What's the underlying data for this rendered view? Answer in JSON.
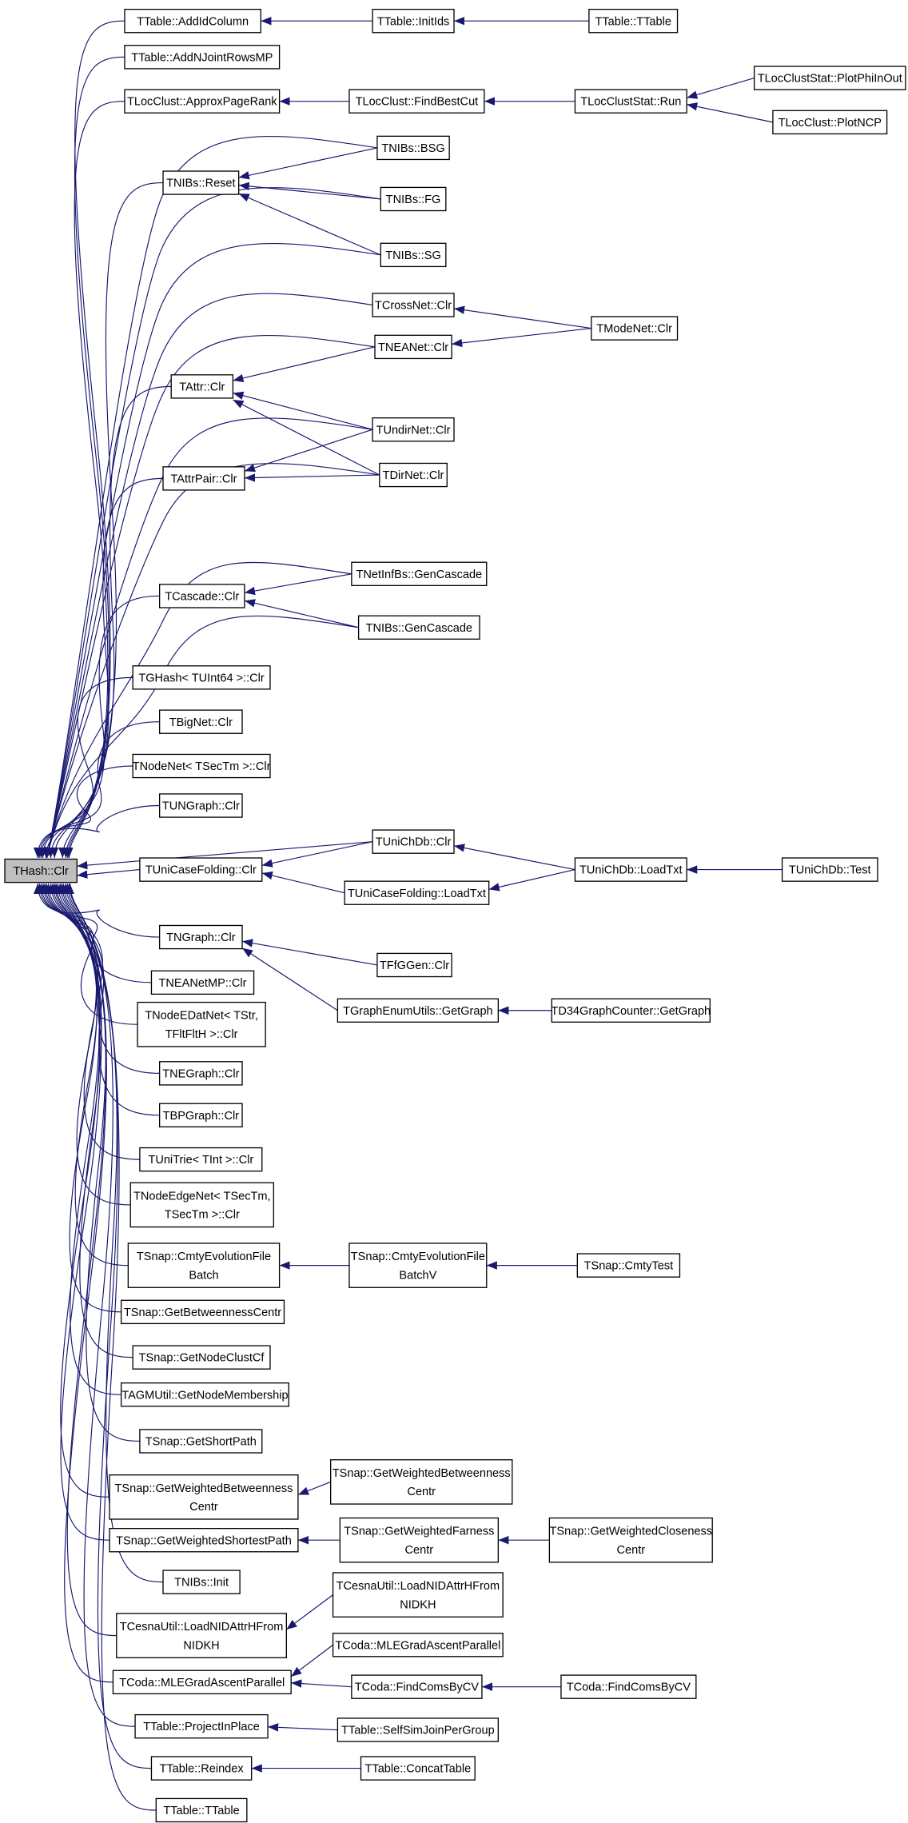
{
  "diagram": {
    "type": "doxygen-caller-graph",
    "edge_color": "#191970",
    "root_fill": "#bfbfbf",
    "nodes": [
      {
        "id": "root",
        "label": "THash::Clr"
      },
      {
        "id": "addIdColumn",
        "label": "TTable::AddIdColumn"
      },
      {
        "id": "addNJoint",
        "label": "TTable::AddNJointRowsMP"
      },
      {
        "id": "approxPR",
        "label": "TLocClust::ApproxPageRank"
      },
      {
        "id": "nibsReset",
        "label": "TNIBs::Reset"
      },
      {
        "id": "attrClr",
        "label": "TAttr::Clr"
      },
      {
        "id": "attrPairClr",
        "label": "TAttrPair::Clr"
      },
      {
        "id": "cascadeClr",
        "label": "TCascade::Clr"
      },
      {
        "id": "ghashClr",
        "label": "TGHash< TUInt64 >::Clr"
      },
      {
        "id": "bigNetClr",
        "label": "TBigNet::Clr"
      },
      {
        "id": "nodeNetClr",
        "label": "TNodeNet< TSecTm >::Clr"
      },
      {
        "id": "ungraphClr",
        "label": "TUNGraph::Clr"
      },
      {
        "id": "uniCaseClr",
        "label": "TUniCaseFolding::Clr"
      },
      {
        "id": "ngraphClr",
        "label": "TNGraph::Clr"
      },
      {
        "id": "neanetmpClr",
        "label": "TNEANetMP::Clr"
      },
      {
        "id": "nodeEDatClr",
        "label": "TNodeEDatNet< TStr,\nTFltFltH >::Clr"
      },
      {
        "id": "negraphClr",
        "label": "TNEGraph::Clr"
      },
      {
        "id": "bpgraphClr",
        "label": "TBPGraph::Clr"
      },
      {
        "id": "uniTrieClr",
        "label": "TUniTrie< TInt >::Clr"
      },
      {
        "id": "nodeEdgeClr",
        "label": "TNodeEdgeNet< TSecTm,\nTSecTm >::Clr"
      },
      {
        "id": "cmtyBatch",
        "label": "TSnap::CmtyEvolutionFile\nBatch"
      },
      {
        "id": "getBetw",
        "label": "TSnap::GetBetweennessCentr"
      },
      {
        "id": "getNodeClust",
        "label": "TSnap::GetNodeClustCf"
      },
      {
        "id": "agmMember",
        "label": "TAGMUtil::GetNodeMembership"
      },
      {
        "id": "getShortPath",
        "label": "TSnap::GetShortPath"
      },
      {
        "id": "getWBetw1",
        "label": "TSnap::GetWeightedBetweenness\nCentr"
      },
      {
        "id": "getWShortest",
        "label": "TSnap::GetWeightedShortestPath"
      },
      {
        "id": "nibsInit",
        "label": "TNIBs::Init"
      },
      {
        "id": "cesna1",
        "label": "TCesnaUtil::LoadNIDAttrHFrom\nNIDKH"
      },
      {
        "id": "coda1",
        "label": "TCoda::MLEGradAscentParallel"
      },
      {
        "id": "projectInPlace",
        "label": "TTable::ProjectInPlace"
      },
      {
        "id": "reindex",
        "label": "TTable::Reindex"
      },
      {
        "id": "ttable1",
        "label": "TTable::TTable"
      },
      {
        "id": "initIds",
        "label": "TTable::InitIds"
      },
      {
        "id": "findBestCut",
        "label": "TLocClust::FindBestCut"
      },
      {
        "id": "bsg",
        "label": "TNIBs::BSG"
      },
      {
        "id": "fg",
        "label": "TNIBs::FG"
      },
      {
        "id": "sg",
        "label": "TNIBs::SG"
      },
      {
        "id": "crossNetClr",
        "label": "TCrossNet::Clr"
      },
      {
        "id": "neanetClr",
        "label": "TNEANet::Clr"
      },
      {
        "id": "undirClr",
        "label": "TUndirNet::Clr"
      },
      {
        "id": "dirClr",
        "label": "TDirNet::Clr"
      },
      {
        "id": "netInfGen",
        "label": "TNetInfBs::GenCascade"
      },
      {
        "id": "nibsGen",
        "label": "TNIBs::GenCascade"
      },
      {
        "id": "uniChDbClr",
        "label": "TUniChDb::Clr"
      },
      {
        "id": "uniCaseLoad",
        "label": "TUniCaseFolding::LoadTxt"
      },
      {
        "id": "ffgClr",
        "label": "TFfGGen::Clr"
      },
      {
        "id": "graphEnum",
        "label": "TGraphEnumUtils::GetGraph"
      },
      {
        "id": "cmtyBatchV",
        "label": "TSnap::CmtyEvolutionFile\nBatchV"
      },
      {
        "id": "getWBetw2",
        "label": "TSnap::GetWeightedBetweenness\nCentr"
      },
      {
        "id": "getWFarness",
        "label": "TSnap::GetWeightedFarness\nCentr"
      },
      {
        "id": "cesna2",
        "label": "TCesnaUtil::LoadNIDAttrHFrom\nNIDKH"
      },
      {
        "id": "coda2",
        "label": "TCoda::MLEGradAscentParallel"
      },
      {
        "id": "findComs1",
        "label": "TCoda::FindComsByCV"
      },
      {
        "id": "selfSim",
        "label": "TTable::SelfSimJoinPerGroup"
      },
      {
        "id": "concatTable",
        "label": "TTable::ConcatTable"
      },
      {
        "id": "ttable2",
        "label": "TTable::TTable"
      },
      {
        "id": "locRun",
        "label": "TLocClustStat::Run"
      },
      {
        "id": "modeNetClr",
        "label": "TModeNet::Clr"
      },
      {
        "id": "uniChDbLoad",
        "label": "TUniChDb::LoadTxt"
      },
      {
        "id": "d34",
        "label": "TD34GraphCounter::GetGraph"
      },
      {
        "id": "cmtyTest",
        "label": "TSnap::CmtyTest"
      },
      {
        "id": "getWClose",
        "label": "TSnap::GetWeightedCloseness\nCentr"
      },
      {
        "id": "findComs2",
        "label": "TCoda::FindComsByCV"
      },
      {
        "id": "plotPhi",
        "label": "TLocClustStat::PlotPhiInOut"
      },
      {
        "id": "plotNCP",
        "label": "TLocClust::PlotNCP"
      },
      {
        "id": "uniChDbTest",
        "label": "TUniChDb::Test"
      }
    ],
    "edges": [
      [
        "addIdColumn",
        "root"
      ],
      [
        "addNJoint",
        "root"
      ],
      [
        "approxPR",
        "root"
      ],
      [
        "nibsReset",
        "root"
      ],
      [
        "attrClr",
        "root"
      ],
      [
        "attrPairClr",
        "root"
      ],
      [
        "cascadeClr",
        "root"
      ],
      [
        "ghashClr",
        "root"
      ],
      [
        "bigNetClr",
        "root"
      ],
      [
        "nodeNetClr",
        "root"
      ],
      [
        "ungraphClr",
        "root"
      ],
      [
        "uniCaseClr",
        "root"
      ],
      [
        "ngraphClr",
        "root"
      ],
      [
        "neanetmpClr",
        "root"
      ],
      [
        "nodeEDatClr",
        "root"
      ],
      [
        "negraphClr",
        "root"
      ],
      [
        "bpgraphClr",
        "root"
      ],
      [
        "uniTrieClr",
        "root"
      ],
      [
        "nodeEdgeClr",
        "root"
      ],
      [
        "cmtyBatch",
        "root"
      ],
      [
        "getBetw",
        "root"
      ],
      [
        "getNodeClust",
        "root"
      ],
      [
        "agmMember",
        "root"
      ],
      [
        "getShortPath",
        "root"
      ],
      [
        "getWBetw1",
        "root"
      ],
      [
        "getWShortest",
        "root"
      ],
      [
        "nibsInit",
        "root"
      ],
      [
        "cesna1",
        "root"
      ],
      [
        "coda1",
        "root"
      ],
      [
        "projectInPlace",
        "root"
      ],
      [
        "reindex",
        "root"
      ],
      [
        "ttable1",
        "root"
      ],
      [
        "bsg",
        "root"
      ],
      [
        "fg",
        "root"
      ],
      [
        "sg",
        "root"
      ],
      [
        "crossNetClr",
        "root"
      ],
      [
        "neanetClr",
        "root"
      ],
      [
        "undirClr",
        "root"
      ],
      [
        "dirClr",
        "root"
      ],
      [
        "netInfGen",
        "root"
      ],
      [
        "nibsGen",
        "root"
      ],
      [
        "uniChDbClr",
        "root"
      ],
      [
        "initIds",
        "addIdColumn"
      ],
      [
        "ttable2",
        "initIds"
      ],
      [
        "findBestCut",
        "approxPR"
      ],
      [
        "locRun",
        "findBestCut"
      ],
      [
        "plotPhi",
        "locRun"
      ],
      [
        "plotNCP",
        "locRun"
      ],
      [
        "bsg",
        "nibsReset"
      ],
      [
        "fg",
        "nibsReset"
      ],
      [
        "sg",
        "nibsReset"
      ],
      [
        "modeNetClr",
        "crossNetClr"
      ],
      [
        "modeNetClr",
        "neanetClr"
      ],
      [
        "neanetClr",
        "attrClr"
      ],
      [
        "undirClr",
        "attrClr"
      ],
      [
        "dirClr",
        "attrClr"
      ],
      [
        "undirClr",
        "attrPairClr"
      ],
      [
        "dirClr",
        "attrPairClr"
      ],
      [
        "netInfGen",
        "cascadeClr"
      ],
      [
        "nibsGen",
        "cascadeClr"
      ],
      [
        "uniChDbClr",
        "uniCaseClr"
      ],
      [
        "uniCaseLoad",
        "uniCaseClr"
      ],
      [
        "uniChDbLoad",
        "uniChDbClr"
      ],
      [
        "uniChDbLoad",
        "uniCaseLoad"
      ],
      [
        "uniChDbTest",
        "uniChDbLoad"
      ],
      [
        "ffgClr",
        "ngraphClr"
      ],
      [
        "graphEnum",
        "ngraphClr"
      ],
      [
        "d34",
        "graphEnum"
      ],
      [
        "cmtyBatchV",
        "cmtyBatch"
      ],
      [
        "cmtyTest",
        "cmtyBatchV"
      ],
      [
        "getWBetw2",
        "getWBetw1"
      ],
      [
        "getWFarness",
        "getWShortest"
      ],
      [
        "getWClose",
        "getWFarness"
      ],
      [
        "cesna2",
        "cesna1"
      ],
      [
        "coda2",
        "coda1"
      ],
      [
        "findComs1",
        "coda1"
      ],
      [
        "findComs2",
        "findComs1"
      ],
      [
        "selfSim",
        "projectInPlace"
      ],
      [
        "concatTable",
        "reindex"
      ]
    ]
  }
}
